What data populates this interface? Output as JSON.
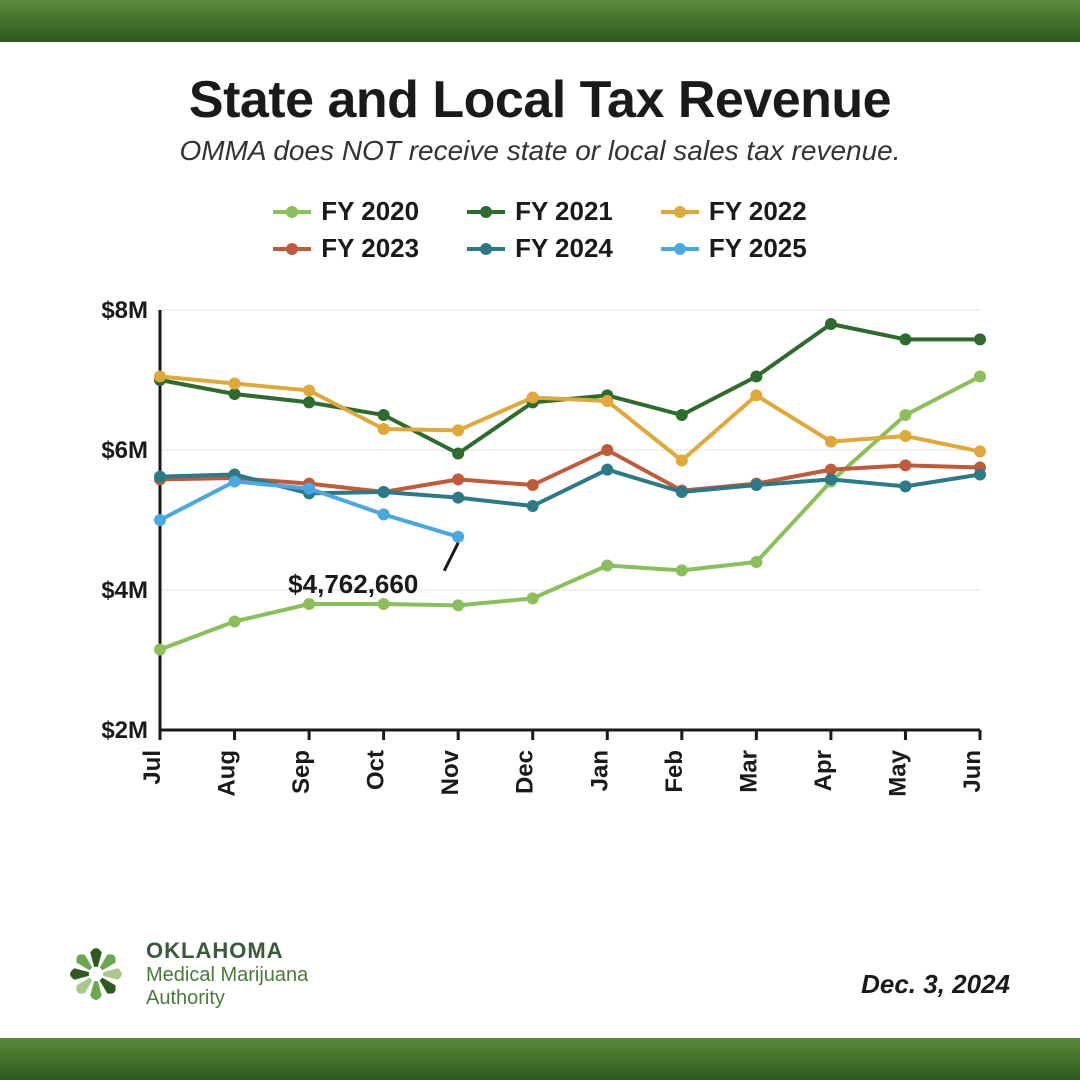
{
  "title": "State and Local Tax Revenue",
  "subtitle": "OMMA does NOT receive state or local sales tax revenue.",
  "date_label": "Dec. 3, 2024",
  "logo": {
    "line1": "OKLAHOMA",
    "line2": "Medical Marijuana",
    "line3": "Authority",
    "colors": [
      "#2e5a1f",
      "#6aa84f",
      "#a8c98a"
    ]
  },
  "band_gradient": [
    "#5b8a3a",
    "#2e5a1f"
  ],
  "chart": {
    "type": "line",
    "background_color": "#ffffff",
    "grid_color": "#e0e0e0",
    "axis_color": "#1a1a1a",
    "label_fontsize": 24,
    "label_fontweight": 700,
    "line_width": 4,
    "marker_radius": 6,
    "x_categories": [
      "Jul",
      "Aug",
      "Sep",
      "Oct",
      "Nov",
      "Dec",
      "Jan",
      "Feb",
      "Mar",
      "Apr",
      "May",
      "Jun"
    ],
    "y_ticks": [
      2,
      4,
      6,
      8
    ],
    "y_tick_labels": [
      "$2M",
      "$4M",
      "$6M",
      "$8M"
    ],
    "ylim": [
      2,
      8
    ],
    "series": [
      {
        "name": "FY 2020",
        "color": "#8bbf5a",
        "values": [
          3.15,
          3.55,
          3.8,
          3.8,
          3.78,
          3.88,
          4.35,
          4.28,
          4.4,
          5.55,
          6.5,
          7.05
        ]
      },
      {
        "name": "FY 2021",
        "color": "#2e6b2e",
        "values": [
          7.0,
          6.8,
          6.68,
          6.5,
          5.95,
          6.68,
          6.78,
          6.5,
          7.05,
          7.8,
          7.58,
          7.58
        ]
      },
      {
        "name": "FY 2022",
        "color": "#e0a838",
        "values": [
          7.05,
          6.95,
          6.85,
          6.3,
          6.28,
          6.75,
          6.7,
          5.85,
          6.78,
          6.12,
          6.2,
          5.98
        ]
      },
      {
        "name": "FY 2023",
        "color": "#c05a3a",
        "values": [
          5.58,
          5.6,
          5.52,
          5.4,
          5.58,
          5.5,
          6.0,
          5.42,
          5.52,
          5.72,
          5.78,
          5.75
        ]
      },
      {
        "name": "FY 2024",
        "color": "#2a7a88",
        "values": [
          5.62,
          5.65,
          5.38,
          5.4,
          5.32,
          5.2,
          5.72,
          5.4,
          5.5,
          5.58,
          5.48,
          5.65
        ]
      },
      {
        "name": "FY 2025",
        "color": "#4aa8e0",
        "values": [
          5.0,
          5.55,
          5.45,
          5.08,
          4.76
        ]
      }
    ],
    "annotation": {
      "text": "$4,762,660",
      "series": "FY 2025",
      "point_index": 4
    }
  }
}
